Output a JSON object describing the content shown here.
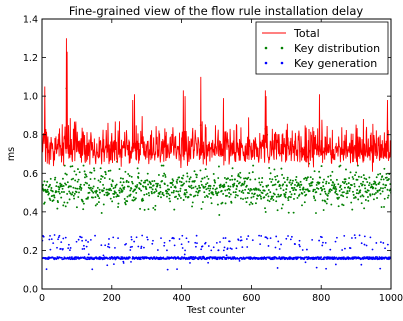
{
  "chart_data": {
    "type": "line",
    "title": "Fine-grained view of the flow rule installation delay",
    "xlabel": "Test counter",
    "ylabel": "ms",
    "xlim": [
      0,
      1000
    ],
    "ylim": [
      0.0,
      1.4
    ],
    "xticks": [
      "0",
      "200",
      "400",
      "600",
      "800",
      "1000"
    ],
    "yticks": [
      "0.0",
      "0.2",
      "0.4",
      "0.6",
      "0.8",
      "1.0",
      "1.2",
      "1.4"
    ],
    "grid": false,
    "legend_position": "top-right",
    "x_range": [
      1,
      1000
    ],
    "series": [
      {
        "name": "Total",
        "style": "line",
        "color": "#ff0000",
        "typical_range": [
          0.6,
          0.95
        ],
        "typical_mean": 0.73,
        "peaks": [
          {
            "x": 8,
            "y": 1.05
          },
          {
            "x": 70,
            "y": 1.3
          },
          {
            "x": 72,
            "y": 1.23
          },
          {
            "x": 260,
            "y": 0.98
          },
          {
            "x": 265,
            "y": 1.01
          },
          {
            "x": 405,
            "y": 1.03
          },
          {
            "x": 410,
            "y": 1.0
          },
          {
            "x": 455,
            "y": 1.1
          },
          {
            "x": 520,
            "y": 0.99
          },
          {
            "x": 640,
            "y": 1.03
          },
          {
            "x": 642,
            "y": 1.0
          },
          {
            "x": 795,
            "y": 1.01
          },
          {
            "x": 990,
            "y": 0.98
          }
        ]
      },
      {
        "name": "Key distribution",
        "style": "dots",
        "color": "#008000",
        "typical_range": [
          0.4,
          0.62
        ],
        "typical_mean": 0.52,
        "outliers": [
          {
            "x": 70,
            "y": 1.04
          },
          {
            "x": 75,
            "y": 0.77
          },
          {
            "x": 215,
            "y": 0.66
          },
          {
            "x": 455,
            "y": 0.85
          },
          {
            "x": 640,
            "y": 0.83
          },
          {
            "x": 645,
            "y": 0.8
          },
          {
            "x": 765,
            "y": 0.65
          },
          {
            "x": 905,
            "y": 0.64
          }
        ]
      },
      {
        "name": "Key generation",
        "style": "dots",
        "color": "#0000ff",
        "baseline": 0.16,
        "upper_band": [
          0.2,
          0.28
        ],
        "typical_range": [
          0.1,
          0.28
        ]
      }
    ]
  }
}
